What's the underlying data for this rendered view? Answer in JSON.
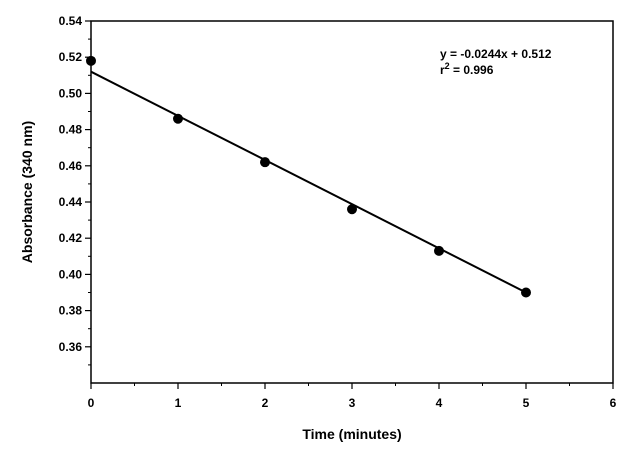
{
  "chart_data": {
    "type": "scatter",
    "xlabel": "Time (minutes)",
    "ylabel": "Absorbance (340 nm)",
    "xlim": [
      0,
      6
    ],
    "ylim": [
      0.34,
      0.54
    ],
    "x_ticks": [
      "0",
      "1",
      "2",
      "3",
      "4",
      "5",
      "6"
    ],
    "y_ticks": [
      "0.36",
      "0.38",
      "0.40",
      "0.42",
      "0.44",
      "0.46",
      "0.48",
      "0.50",
      "0.52",
      "0.54"
    ],
    "grid": false,
    "legend": "none",
    "points": [
      {
        "x": 0,
        "y": 0.518
      },
      {
        "x": 1,
        "y": 0.486
      },
      {
        "x": 2,
        "y": 0.462
      },
      {
        "x": 3,
        "y": 0.436
      },
      {
        "x": 4,
        "y": 0.413
      },
      {
        "x": 5,
        "y": 0.39
      }
    ],
    "fit": {
      "slope": -0.0244,
      "intercept": 0.512,
      "x_range": [
        0,
        5
      ]
    },
    "annotation": {
      "equation": "y = -0.0244x + 0.512",
      "r_base": "r",
      "r_sup": "2",
      "r_value": " = 0.996"
    },
    "colors": {
      "marker": "#000000",
      "line": "#000000"
    }
  }
}
